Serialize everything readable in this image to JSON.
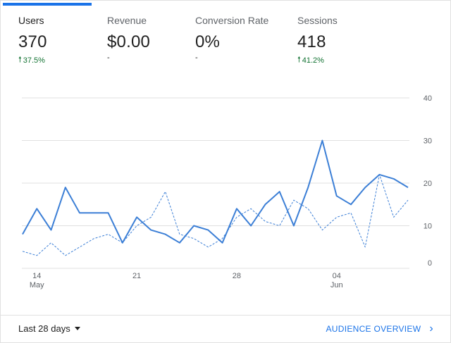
{
  "metrics": [
    {
      "label": "Users",
      "value": "370",
      "delta": "37.5%",
      "trend": "up"
    },
    {
      "label": "Revenue",
      "value": "$0.00",
      "delta": "-",
      "trend": "none"
    },
    {
      "label": "Conversion Rate",
      "value": "0%",
      "delta": "-",
      "trend": "none"
    },
    {
      "label": "Sessions",
      "value": "418",
      "delta": "41.2%",
      "trend": "up"
    }
  ],
  "footer": {
    "date_range": "Last 28 days",
    "audience_link": "AUDIENCE OVERVIEW"
  },
  "colors": {
    "accent": "#1a73e8",
    "positive": "#137333",
    "line": "#3c7fd6"
  },
  "chart_data": {
    "type": "line",
    "x_tick_labels": [
      {
        "day": "14",
        "month": "May"
      },
      {
        "day": "21",
        "month": ""
      },
      {
        "day": "28",
        "month": ""
      },
      {
        "day": "04",
        "month": "Jun"
      }
    ],
    "y_ticks": [
      0,
      10,
      20,
      30,
      40
    ],
    "ylim": [
      0,
      40
    ],
    "series": [
      {
        "style": "solid",
        "values": [
          8,
          14,
          9,
          19,
          13,
          13,
          13,
          6,
          12,
          9,
          8,
          6,
          10,
          9,
          6,
          14,
          10,
          15,
          18,
          10,
          19,
          30,
          17,
          15,
          19,
          22,
          21,
          19
        ]
      },
      {
        "style": "dashed",
        "values": [
          4,
          3,
          6,
          3,
          5,
          7,
          8,
          6,
          10,
          12,
          18,
          8,
          7,
          5,
          7,
          12,
          14,
          11,
          10,
          16,
          14,
          9,
          12,
          13,
          5,
          22,
          12,
          16
        ]
      }
    ]
  }
}
